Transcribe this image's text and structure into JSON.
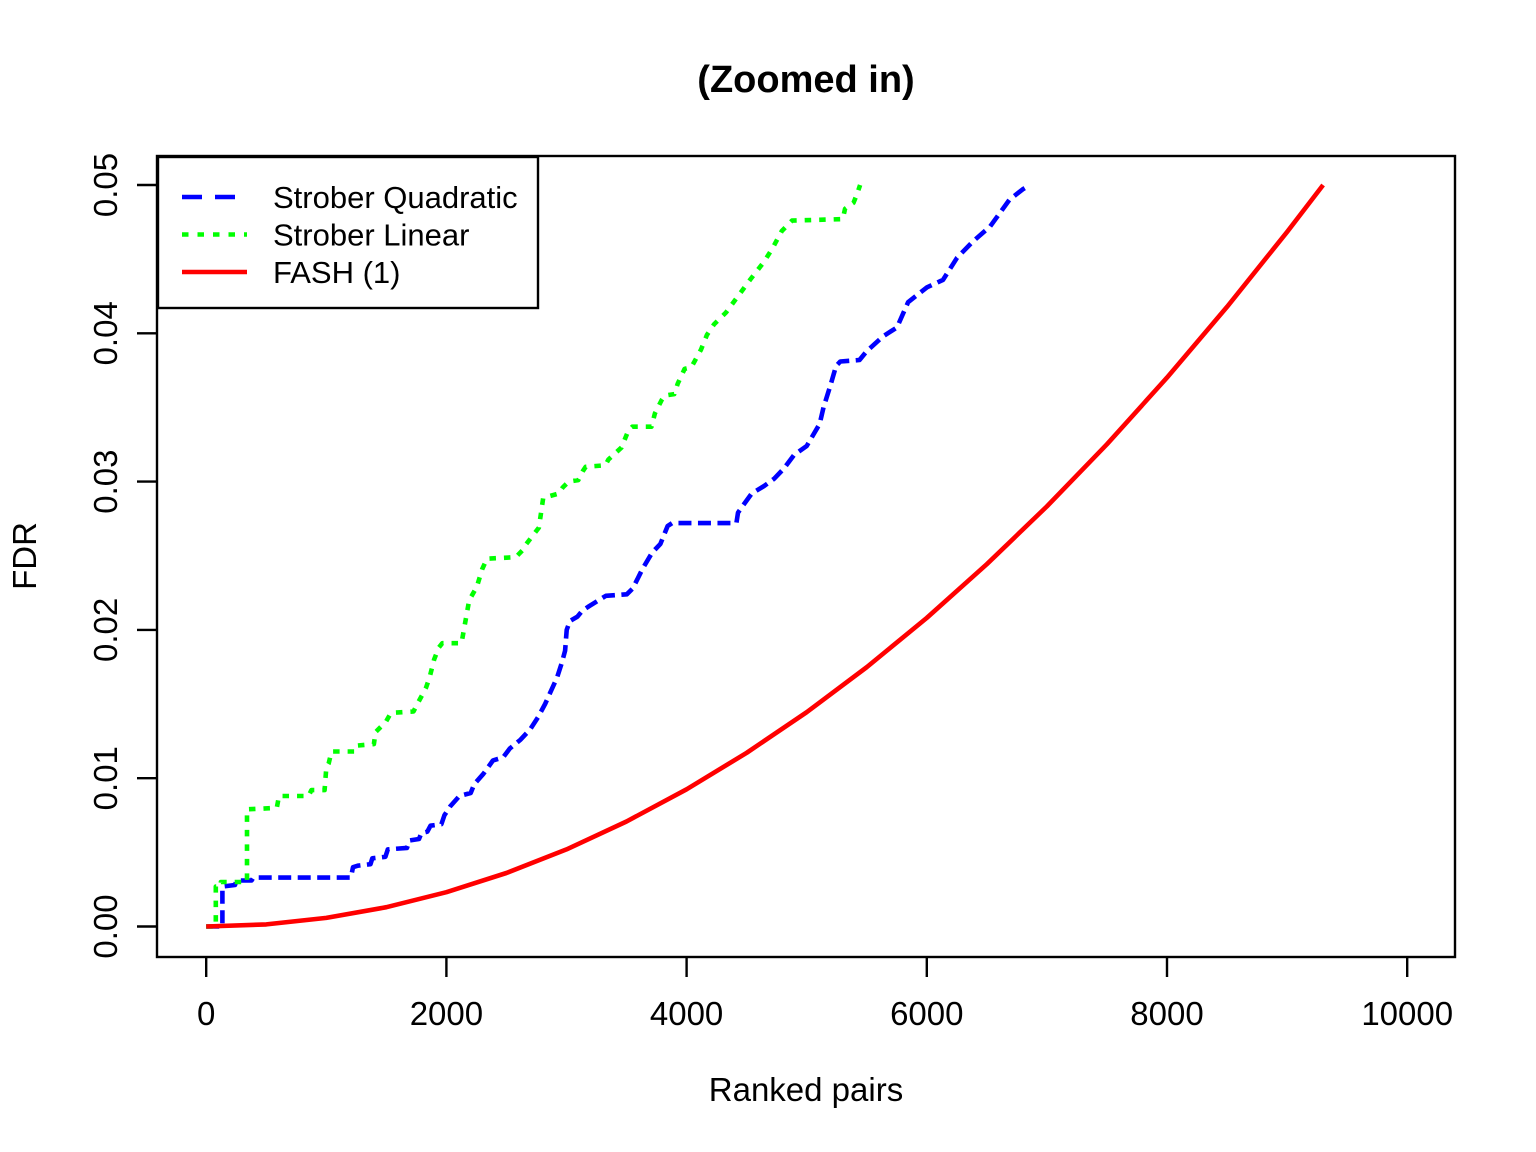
{
  "chart_data": {
    "type": "line",
    "title": "(Zoomed in)",
    "xlabel": "Ranked pairs",
    "ylabel": "FDR",
    "xlim": [
      0,
      10000
    ],
    "ylim": [
      0,
      0.05
    ],
    "axis_expansion": 0.04,
    "grid": false,
    "legend_position": "topleft",
    "x_ticks": {
      "values": [
        0,
        2000,
        4000,
        6000,
        8000,
        10000
      ],
      "labels": [
        "0",
        "2000",
        "4000",
        "6000",
        "8000",
        "10000"
      ]
    },
    "y_ticks": {
      "values": [
        0,
        0.01,
        0.02,
        0.03,
        0.04,
        0.05
      ],
      "labels": [
        "0.00",
        "0.01",
        "0.02",
        "0.03",
        "0.04",
        "0.05"
      ]
    },
    "series": [
      {
        "name": "Strober Quadratic",
        "color": "#0000FF",
        "line_style": "dashed",
        "dash": "13,6.5",
        "legend_dash": "20,13",
        "points": [
          [
            0,
            0
          ],
          [
            135,
            0
          ],
          [
            135,
            0.0027
          ],
          [
            240,
            0.0028
          ],
          [
            252,
            0.0031
          ],
          [
            378,
            0.0031
          ],
          [
            392,
            0.0033
          ],
          [
            1205,
            0.0033
          ],
          [
            1222,
            0.004
          ],
          [
            1262,
            0.0041
          ],
          [
            1368,
            0.0042
          ],
          [
            1383,
            0.0046
          ],
          [
            1492,
            0.0047
          ],
          [
            1512,
            0.0052
          ],
          [
            1672,
            0.0053
          ],
          [
            1692,
            0.0058
          ],
          [
            1772,
            0.0059
          ],
          [
            1792,
            0.0063
          ],
          [
            1842,
            0.0064
          ],
          [
            1868,
            0.0068
          ],
          [
            1958,
            0.0069
          ],
          [
            1983,
            0.0075
          ],
          [
            2032,
            0.0081
          ],
          [
            2108,
            0.0088
          ],
          [
            2202,
            0.009
          ],
          [
            2232,
            0.0096
          ],
          [
            2308,
            0.0103
          ],
          [
            2388,
            0.0112
          ],
          [
            2472,
            0.0114
          ],
          [
            2528,
            0.012
          ],
          [
            2618,
            0.0126
          ],
          [
            2698,
            0.0133
          ],
          [
            2762,
            0.0141
          ],
          [
            2822,
            0.015
          ],
          [
            2872,
            0.0159
          ],
          [
            2922,
            0.0168
          ],
          [
            2962,
            0.0178
          ],
          [
            2988,
            0.0186
          ],
          [
            3002,
            0.02
          ],
          [
            3028,
            0.0206
          ],
          [
            3092,
            0.0209
          ],
          [
            3132,
            0.0213
          ],
          [
            3188,
            0.0216
          ],
          [
            3268,
            0.022
          ],
          [
            3328,
            0.0223
          ],
          [
            3502,
            0.0224
          ],
          [
            3552,
            0.0228
          ],
          [
            3632,
            0.0241
          ],
          [
            3712,
            0.0252
          ],
          [
            3782,
            0.0258
          ],
          [
            3842,
            0.027
          ],
          [
            3880,
            0.0272
          ],
          [
            4415,
            0.0272
          ],
          [
            4428,
            0.0279
          ],
          [
            4462,
            0.0283
          ],
          [
            4542,
            0.0292
          ],
          [
            4645,
            0.0297
          ],
          [
            4730,
            0.0302
          ],
          [
            4812,
            0.0309
          ],
          [
            4895,
            0.0318
          ],
          [
            5000,
            0.0324
          ],
          [
            5108,
            0.0339
          ],
          [
            5140,
            0.035
          ],
          [
            5198,
            0.0365
          ],
          [
            5245,
            0.0378
          ],
          [
            5280,
            0.0381
          ],
          [
            5440,
            0.0382
          ],
          [
            5500,
            0.0388
          ],
          [
            5636,
            0.0398
          ],
          [
            5752,
            0.0404
          ],
          [
            5844,
            0.0421
          ],
          [
            6002,
            0.0431
          ],
          [
            6135,
            0.0436
          ],
          [
            6252,
            0.0451
          ],
          [
            6385,
            0.0462
          ],
          [
            6527,
            0.0472
          ],
          [
            6688,
            0.049
          ],
          [
            6798,
            0.0497
          ],
          [
            6860,
            0.05
          ]
        ]
      },
      {
        "name": "Strober Linear",
        "color": "#00FF00",
        "line_style": "dotted",
        "dash": "6.5,8",
        "legend_dash": "6.5,9",
        "points": [
          [
            0,
            0
          ],
          [
            80,
            0
          ],
          [
            80,
            0.0027
          ],
          [
            118,
            0.0027
          ],
          [
            122,
            0.003
          ],
          [
            340,
            0.003
          ],
          [
            340,
            0.0079
          ],
          [
            588,
            0.008
          ],
          [
            606,
            0.0088
          ],
          [
            853,
            0.0088
          ],
          [
            876,
            0.0092
          ],
          [
            986,
            0.0092
          ],
          [
            1000,
            0.0107
          ],
          [
            1020,
            0.011
          ],
          [
            1043,
            0.0118
          ],
          [
            1238,
            0.0118
          ],
          [
            1256,
            0.0122
          ],
          [
            1396,
            0.0123
          ],
          [
            1410,
            0.0131
          ],
          [
            1496,
            0.0138
          ],
          [
            1538,
            0.0144
          ],
          [
            1726,
            0.0145
          ],
          [
            1758,
            0.015
          ],
          [
            1798,
            0.0156
          ],
          [
            1830,
            0.0161
          ],
          [
            1860,
            0.0168
          ],
          [
            1898,
            0.018
          ],
          [
            1936,
            0.0188
          ],
          [
            1966,
            0.0191
          ],
          [
            2126,
            0.0191
          ],
          [
            2190,
            0.022
          ],
          [
            2253,
            0.0229
          ],
          [
            2298,
            0.0241
          ],
          [
            2338,
            0.0248
          ],
          [
            2578,
            0.0249
          ],
          [
            2638,
            0.0254
          ],
          [
            2666,
            0.0258
          ],
          [
            2770,
            0.0269
          ],
          [
            2806,
            0.0289
          ],
          [
            2936,
            0.0292
          ],
          [
            2968,
            0.0296
          ],
          [
            3018,
            0.03
          ],
          [
            3098,
            0.0301
          ],
          [
            3136,
            0.0307
          ],
          [
            3160,
            0.031
          ],
          [
            3323,
            0.0311
          ],
          [
            3350,
            0.0315
          ],
          [
            3458,
            0.0323
          ],
          [
            3513,
            0.0334
          ],
          [
            3548,
            0.0337
          ],
          [
            3708,
            0.0337
          ],
          [
            3736,
            0.0346
          ],
          [
            3793,
            0.0355
          ],
          [
            3818,
            0.0358
          ],
          [
            3898,
            0.0359
          ],
          [
            3926,
            0.0366
          ],
          [
            3983,
            0.0376
          ],
          [
            4038,
            0.0377
          ],
          [
            4066,
            0.0381
          ],
          [
            4120,
            0.0389
          ],
          [
            4170,
            0.0399
          ],
          [
            4228,
            0.0406
          ],
          [
            4328,
            0.0414
          ],
          [
            4428,
            0.0425
          ],
          [
            4528,
            0.0436
          ],
          [
            4643,
            0.0448
          ],
          [
            4713,
            0.0457
          ],
          [
            4793,
            0.0469
          ],
          [
            4878,
            0.0476
          ],
          [
            5300,
            0.0477
          ],
          [
            5320,
            0.0484
          ],
          [
            5390,
            0.0488
          ],
          [
            5420,
            0.0494
          ],
          [
            5445,
            0.05
          ]
        ]
      },
      {
        "name": "FASH (1)",
        "color": "#FF0000",
        "line_style": "solid",
        "dash": "",
        "legend_dash": "",
        "points": [
          [
            0,
            0
          ],
          [
            500,
            0.00014
          ],
          [
            1000,
            0.00058
          ],
          [
            1500,
            0.0013
          ],
          [
            2000,
            0.00231
          ],
          [
            2500,
            0.00361
          ],
          [
            3000,
            0.0052
          ],
          [
            3500,
            0.00708
          ],
          [
            4000,
            0.00925
          ],
          [
            4500,
            0.01171
          ],
          [
            5000,
            0.01445
          ],
          [
            5500,
            0.01749
          ],
          [
            6000,
            0.02081
          ],
          [
            6500,
            0.02443
          ],
          [
            7000,
            0.02833
          ],
          [
            7500,
            0.03252
          ],
          [
            8000,
            0.03701
          ],
          [
            8500,
            0.04178
          ],
          [
            9000,
            0.04684
          ],
          [
            9300,
            0.05
          ]
        ]
      }
    ]
  }
}
